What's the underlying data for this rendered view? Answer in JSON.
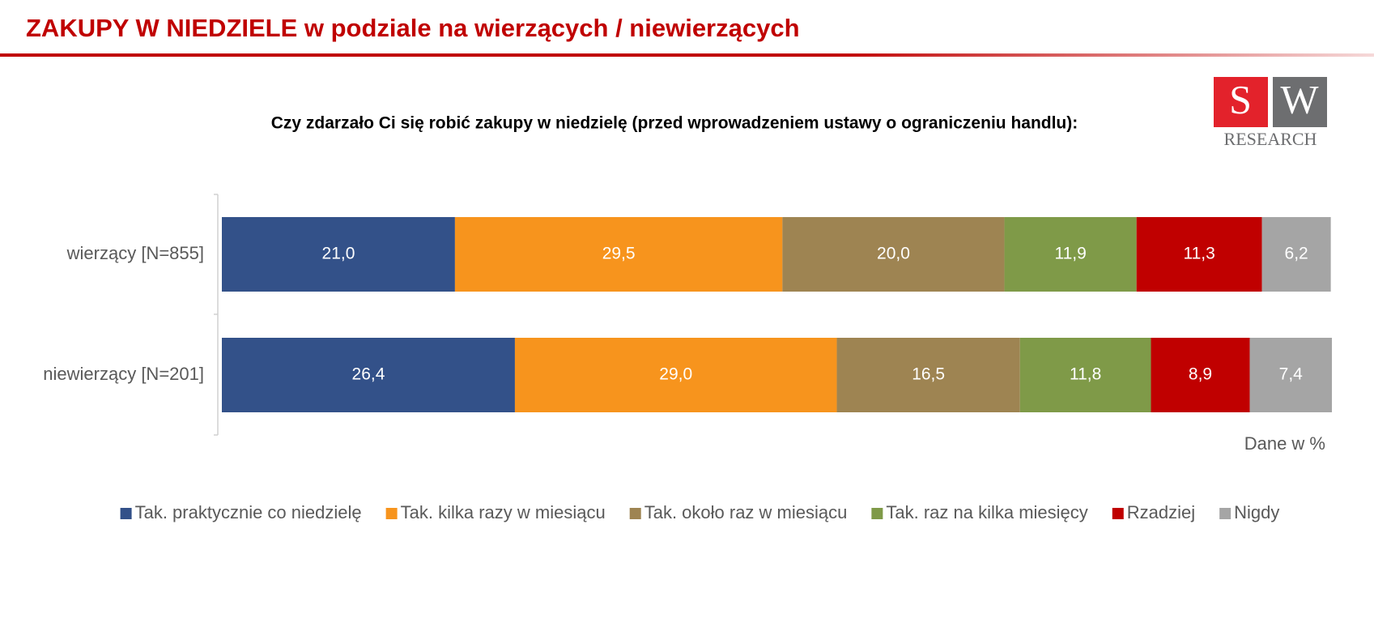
{
  "chart_data": {
    "type": "stacked-bar-horizontal",
    "title": "ZAKUPY W NIEDZIELE w podziale na wierzących / niewierzących",
    "subtitle": "Czy zdarzało Ci się robić zakupy w niedzielę (przed wprowadzeniem ustawy o ograniczeniu handlu):",
    "note": "Dane w %",
    "logo": {
      "left": "S",
      "right": "W",
      "bottom": "RESEARCH"
    },
    "categories": [
      "wierzący [N=855]",
      "niewierzący [N=201]"
    ],
    "xlim": [
      0,
      100
    ],
    "legend_position": "bottom",
    "series": [
      {
        "name": "Tak. praktycznie co niedzielę",
        "color": "#335189",
        "values": [
          21.0,
          26.4
        ],
        "value_labels": [
          "21,0",
          "26,4"
        ]
      },
      {
        "name": "Tak. kilka razy w miesiącu",
        "color": "#f7941d",
        "values": [
          29.5,
          29.0
        ],
        "value_labels": [
          "29,5",
          "29,0"
        ]
      },
      {
        "name": "Tak. około raz w miesiącu",
        "color": "#9e8452",
        "values": [
          20.0,
          16.5
        ],
        "value_labels": [
          "20,0",
          "16,5"
        ]
      },
      {
        "name": "Tak. raz na kilka miesięcy",
        "color": "#7f9a48",
        "values": [
          11.9,
          11.8
        ],
        "value_labels": [
          "11,9",
          "11,8"
        ]
      },
      {
        "name": "Rzadziej",
        "color": "#c00000",
        "values": [
          11.3,
          8.9
        ],
        "value_labels": [
          "11,3",
          "8,9"
        ]
      },
      {
        "name": "Nigdy",
        "color": "#a5a5a5",
        "values": [
          6.2,
          7.4
        ],
        "value_labels": [
          "6,2",
          "7,4"
        ]
      }
    ]
  }
}
